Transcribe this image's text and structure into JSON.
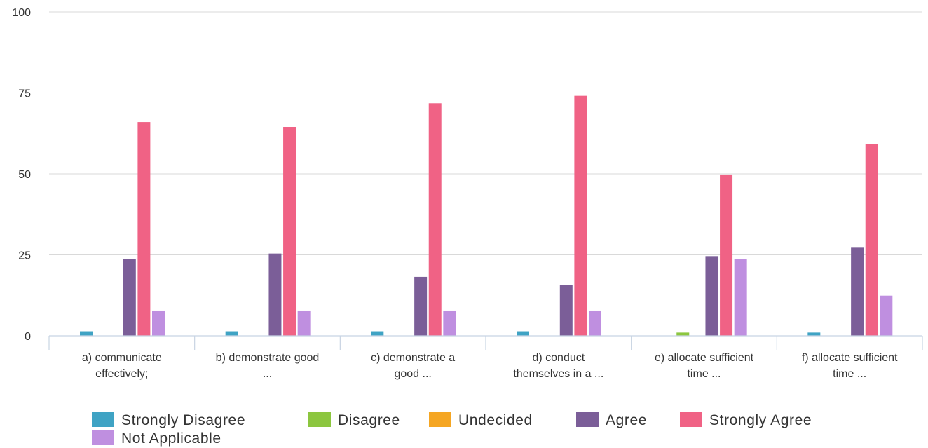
{
  "chart_data": {
    "type": "bar",
    "title": "",
    "xlabel": "",
    "ylabel": "",
    "ylim": [
      0,
      100
    ],
    "y_ticks": [
      "0",
      "25",
      "50",
      "75",
      "100"
    ],
    "grid": true,
    "legend_position": "bottom",
    "categories": [
      [
        "a) communicate",
        "effectively;"
      ],
      [
        "b) demonstrate good",
        "..."
      ],
      [
        "c) demonstrate a",
        "good ..."
      ],
      [
        "d) conduct",
        "themselves in a ..."
      ],
      [
        "e) allocate sufficient",
        "time ..."
      ],
      [
        "f) allocate sufficient",
        "time ..."
      ]
    ],
    "series": [
      {
        "name": "Strongly Disagree",
        "color": "#3fa3c4",
        "values": [
          1.4,
          1.4,
          1.4,
          1.4,
          0,
          1.0
        ]
      },
      {
        "name": "Disagree",
        "color": "#8cc63f",
        "values": [
          0,
          0,
          0,
          0,
          1.0,
          0
        ]
      },
      {
        "name": "Undecided",
        "color": "#f5a623",
        "values": [
          0,
          0,
          0,
          0,
          0,
          0
        ]
      },
      {
        "name": "Agree",
        "color": "#7b5e98",
        "values": [
          23.6,
          25.4,
          18.2,
          15.6,
          24.6,
          27.2
        ]
      },
      {
        "name": "Strongly Agree",
        "color": "#f06285",
        "values": [
          66.0,
          64.5,
          71.8,
          74.1,
          49.8,
          59.1
        ]
      },
      {
        "name": "Not Applicable",
        "color": "#bf8fe0",
        "values": [
          7.8,
          7.8,
          7.8,
          7.8,
          23.6,
          12.4
        ]
      }
    ]
  }
}
